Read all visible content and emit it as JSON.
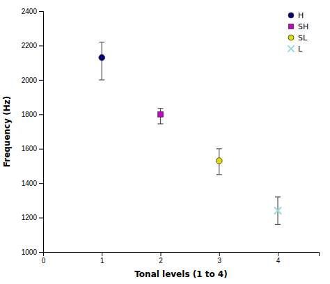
{
  "chart_data": {
    "type": "scatter",
    "xlabel": "Tonal levels (1 to  4)",
    "ylabel": "Frequency (Hz)",
    "xlim": [
      0,
      4.7
    ],
    "ylim": [
      1000,
      2400
    ],
    "xticks": [
      0,
      1,
      2,
      3,
      4
    ],
    "yticks": [
      1000,
      1200,
      1400,
      1600,
      1800,
      2000,
      2200,
      2400
    ],
    "grid": false,
    "legend": "upper right",
    "series": [
      {
        "name": "H",
        "x": [
          1
        ],
        "values": [
          2130
        ],
        "yerr_lower": [
          130
        ],
        "yerr_upper": [
          90
        ],
        "color": "#000080",
        "marker": "circle"
      },
      {
        "name": "SH",
        "x": [
          2
        ],
        "values": [
          1800
        ],
        "yerr_lower": [
          55
        ],
        "yerr_upper": [
          35
        ],
        "color": "#cc00cc",
        "marker": "square"
      },
      {
        "name": "SL",
        "x": [
          3
        ],
        "values": [
          1530
        ],
        "yerr_lower": [
          80
        ],
        "yerr_upper": [
          70
        ],
        "color": "#dddd00",
        "marker": "circle"
      },
      {
        "name": "L",
        "x": [
          4
        ],
        "values": [
          1240
        ],
        "yerr_lower": [
          80
        ],
        "yerr_upper": [
          80
        ],
        "color": "#99dddd",
        "marker": "x"
      }
    ]
  }
}
